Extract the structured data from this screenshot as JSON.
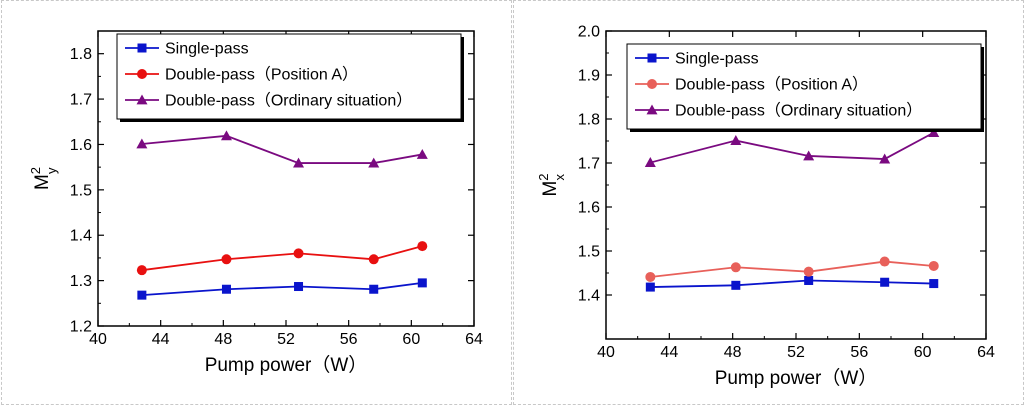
{
  "chart_data": [
    {
      "type": "line",
      "title": "",
      "xlabel": "Pump power（W）",
      "ylabel_main": "M",
      "ylabel_sup": "2",
      "ylabel_sub": "y",
      "xlim": [
        40,
        64
      ],
      "ylim": [
        1.2,
        1.85
      ],
      "xticks": [
        40,
        44,
        48,
        52,
        56,
        60,
        64
      ],
      "yticks": [
        1.2,
        1.3,
        1.4,
        1.5,
        1.6,
        1.7,
        1.8
      ],
      "x": [
        42.8,
        48.2,
        52.8,
        57.6,
        60.7
      ],
      "legend_position": "top-right",
      "series": [
        {
          "name": "Single-pass",
          "marker": "square",
          "color": "#0a14cc",
          "values": [
            1.268,
            1.281,
            1.287,
            1.281,
            1.295
          ]
        },
        {
          "name": "Double-pass（Position A）",
          "marker": "circle",
          "color": "#e81010",
          "values": [
            1.323,
            1.347,
            1.36,
            1.347,
            1.376
          ]
        },
        {
          "name": "Double-pass（Ordinary situation）",
          "marker": "triangle",
          "color": "#7a0a80",
          "values": [
            1.601,
            1.619,
            1.559,
            1.559,
            1.578
          ]
        }
      ]
    },
    {
      "type": "line",
      "title": "",
      "xlabel": "Pump power（W）",
      "ylabel_main": "M",
      "ylabel_sup": "2",
      "ylabel_sub": "x",
      "xlim": [
        40,
        64
      ],
      "ylim": [
        1.3,
        2.0
      ],
      "xticks": [
        40,
        44,
        48,
        52,
        56,
        60,
        64
      ],
      "yticks": [
        1.4,
        1.5,
        1.6,
        1.7,
        1.8,
        1.9,
        2.0
      ],
      "x": [
        42.8,
        48.2,
        52.8,
        57.6,
        60.7
      ],
      "legend_position": "top-right",
      "series": [
        {
          "name": "Single-pass",
          "marker": "square",
          "color": "#0a14cc",
          "values": [
            1.418,
            1.422,
            1.433,
            1.429,
            1.426
          ]
        },
        {
          "name": "Double-pass（Position A）",
          "marker": "circle",
          "color": "#e8605a",
          "values": [
            1.441,
            1.463,
            1.453,
            1.476,
            1.466
          ]
        },
        {
          "name": "Double-pass（Ordinary situation）",
          "marker": "triangle",
          "color": "#7a0a80",
          "values": [
            1.701,
            1.751,
            1.716,
            1.709,
            1.769
          ]
        }
      ]
    }
  ]
}
